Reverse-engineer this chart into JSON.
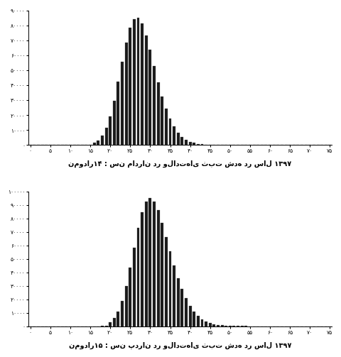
{
  "title1": "نمودار۱۴ : سن مادران در ولادت‌های ثبت شده در سال ۱۳۹۷",
  "title2": "نمودار۱۵ : سن پدران در ولادت‌های ثبت شده در سال ۱۳۹۷",
  "bar_color": "#1a1a1a",
  "bg_color": "#ffffff",
  "mother_peak": 85000,
  "father_peak": 95000,
  "mother_ylim": 90000,
  "father_ylim": 100000,
  "mother_yticks": [
    0,
    10000,
    20000,
    30000,
    40000,
    50000,
    60000,
    70000,
    80000,
    90000
  ],
  "father_yticks": [
    0,
    10000,
    20000,
    30000,
    40000,
    50000,
    60000,
    70000,
    80000,
    90000,
    100000
  ],
  "mother_mean": 27.5,
  "mother_std": 5.8,
  "mother_skew": 1.5,
  "father_mean": 31.5,
  "father_std": 6.5,
  "father_skew": 1.8,
  "age_min": 0,
  "age_max": 75,
  "title_fontsize": 7,
  "tick_fontsize": 5.5
}
